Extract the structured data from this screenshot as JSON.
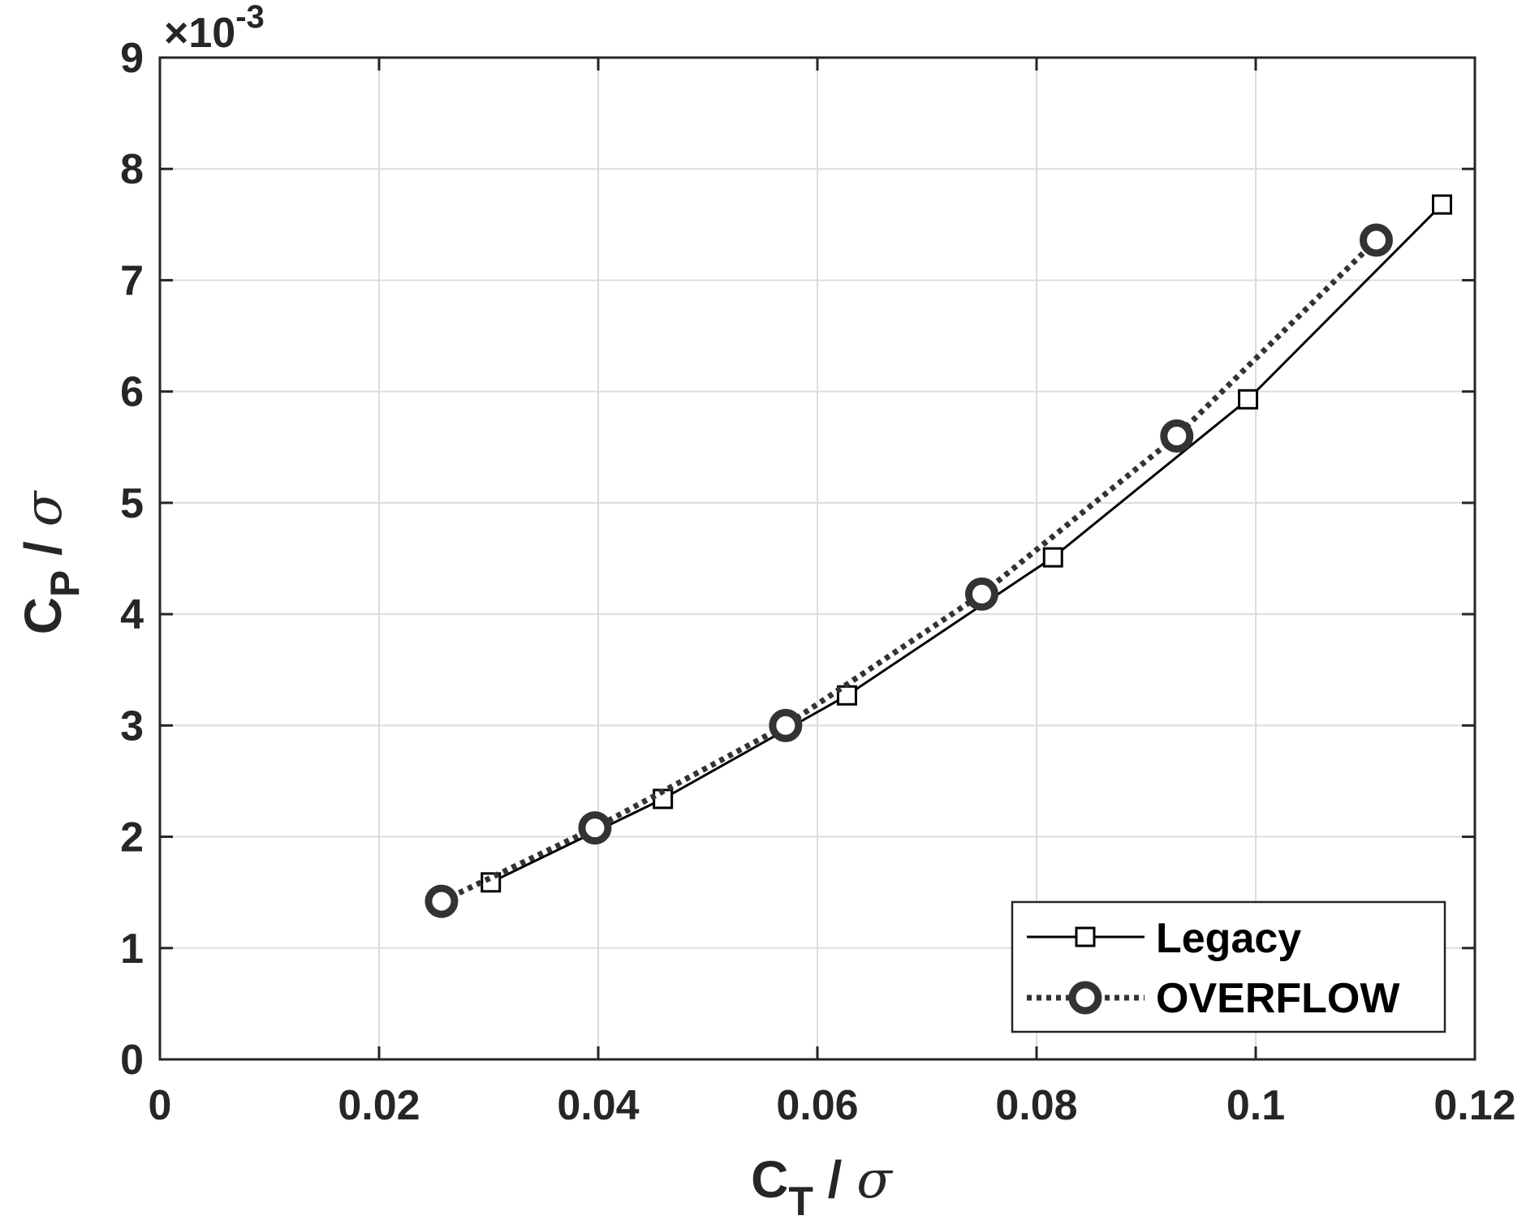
{
  "chart_data": {
    "type": "line",
    "xlabel": {
      "main": "C",
      "sub": "T",
      "rest": " / ",
      "sym": "σ"
    },
    "ylabel": {
      "main": "C",
      "sub": "P",
      "rest": " / ",
      "sym": "σ"
    },
    "exponent_label": {
      "prefix": "×10",
      "power": "-3"
    },
    "xlim": [
      0,
      0.12
    ],
    "ylim": [
      0,
      9
    ],
    "y_scale_factor": 0.001,
    "x_ticks": [
      "0",
      "0.02",
      "0.04",
      "0.06",
      "0.08",
      "0.1",
      "0.12"
    ],
    "y_ticks": [
      "0",
      "1",
      "2",
      "3",
      "4",
      "5",
      "6",
      "7",
      "8",
      "9"
    ],
    "grid": true,
    "legend_position": "bottom-right",
    "series": [
      {
        "name": "Legacy",
        "line_style": "solid",
        "marker": "square",
        "color": "#000000",
        "x": [
          0.0302,
          0.0459,
          0.0627,
          0.0815,
          0.0993,
          0.117
        ],
        "y": [
          1.59,
          2.34,
          3.27,
          4.51,
          5.93,
          7.68
        ]
      },
      {
        "name": "OVERFLOW",
        "line_style": "dotted",
        "marker": "circle",
        "color": "#333333",
        "x": [
          0.0257,
          0.0397,
          0.0571,
          0.075,
          0.0928,
          0.111
        ],
        "y": [
          1.42,
          2.08,
          3.0,
          4.18,
          5.6,
          7.36
        ]
      }
    ]
  }
}
